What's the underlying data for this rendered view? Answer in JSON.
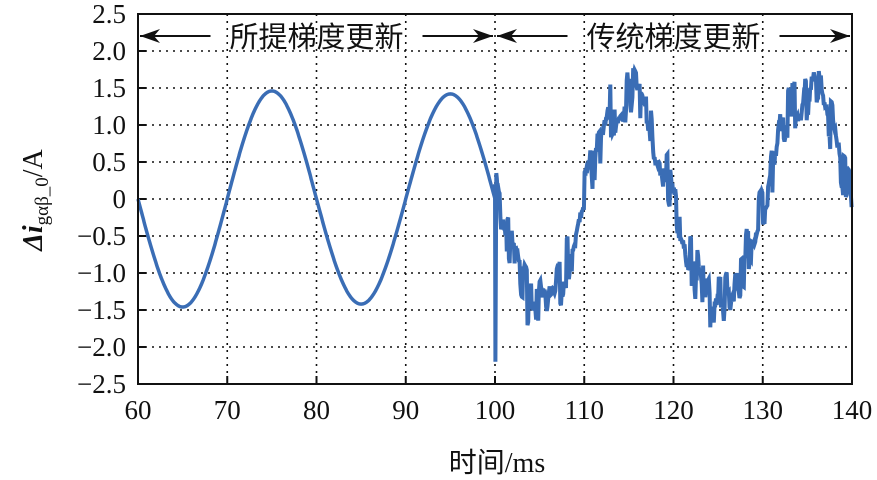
{
  "chart_data": {
    "type": "line",
    "title": "",
    "xlabel": "时间/ms",
    "ylabel_main": "Δi",
    "ylabel_sub": "gαβ_0",
    "ylabel_unit": "/A",
    "xlim": [
      60,
      140
    ],
    "ylim": [
      -2.5,
      2.5
    ],
    "xticks": [
      60,
      70,
      80,
      90,
      100,
      110,
      120,
      130,
      140
    ],
    "yticks": [
      2.5,
      2.0,
      1.5,
      1.0,
      0.5,
      0,
      -0.5,
      -1.0,
      -1.5,
      -2.0,
      -2.5
    ],
    "ytick_labels": [
      "2.5",
      "2.0",
      "1.5",
      "1.0",
      "0.5",
      "0",
      "−0.5",
      "−1.0",
      "−1.5",
      "−2.0",
      "−2.5"
    ],
    "grid": "dotted",
    "line_color": "#3a6db5",
    "annotations": [
      {
        "text": "所提梯度更新",
        "x_start": 60,
        "x_end": 100,
        "y": 2.2
      },
      {
        "text": "传统梯度更新",
        "x_start": 100,
        "x_end": 140,
        "y": 2.2
      }
    ],
    "series": [
      {
        "name": "所提梯度更新 (proposed gradient update)",
        "description": "smooth sinusoid, period 20 ms, amplitude ~1.45 A, zero crossing at 60 ms going negative",
        "x": [
          60,
          65,
          70,
          75,
          80,
          85,
          90,
          95,
          100
        ],
        "values": [
          0.0,
          -1.45,
          0.0,
          1.47,
          0.0,
          -1.43,
          0.0,
          1.42,
          0.15
        ]
      },
      {
        "name": "传统梯度更新 (traditional gradient update)",
        "description": "noisy sinusoid, period 20 ms, amplitude ~1.5 A with ±0.3 A ripple; transient spike to -2.2 A at 100 ms",
        "x": [
          100,
          100.2,
          101,
          105,
          110,
          115,
          120,
          125,
          130,
          135,
          140
        ],
        "values": [
          -2.2,
          0.2,
          -0.3,
          -1.5,
          0.0,
          1.55,
          0.0,
          -1.55,
          0.0,
          1.55,
          0.0
        ],
        "peaks": {
          "max": 1.95,
          "min": -1.9
        }
      }
    ]
  }
}
